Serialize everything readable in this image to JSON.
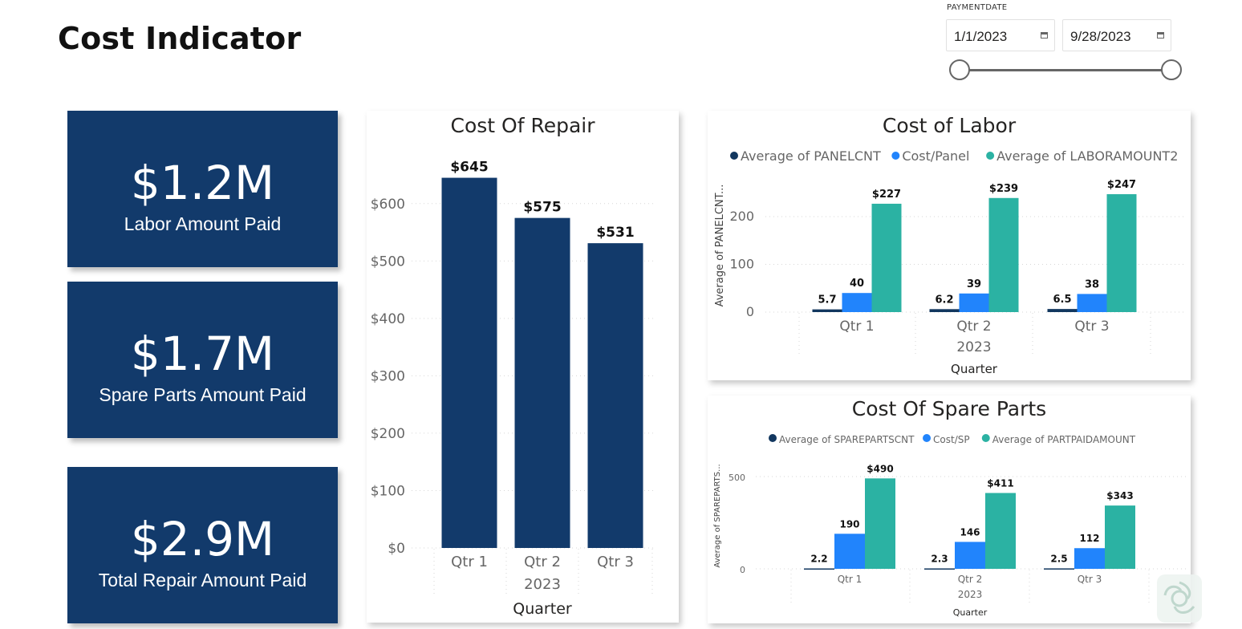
{
  "header": {
    "title": "Cost Indicator"
  },
  "slicer": {
    "label": "PAYMENTDATE",
    "start_date": "1/1/2023",
    "end_date": "9/28/2023",
    "range_start": 0.0,
    "range_end": 1.0
  },
  "kpis": [
    {
      "value": "$1.2M",
      "label": "Labor Amount Paid"
    },
    {
      "value": "$1.7M",
      "label": "Spare Parts Amount Paid"
    },
    {
      "value": "$2.9M",
      "label": "Total Repair Amount Paid"
    }
  ],
  "colors": {
    "navy": "#123a6b",
    "blue": "#2184fc",
    "teal": "#2bb2a3",
    "dark_navy": "#12375f"
  },
  "chart_data": [
    {
      "type": "bar",
      "title": "Cost Of Repair",
      "categories": [
        "Qtr 1",
        "Qtr 2",
        "Qtr 3"
      ],
      "category_group": "2023",
      "values": [
        645,
        575,
        531
      ],
      "data_labels": [
        "$645",
        "$575",
        "$531"
      ],
      "xlabel": "Quarter",
      "ylabel": "",
      "ylim": [
        0,
        650
      ],
      "yticks": [
        0,
        100,
        200,
        300,
        400,
        500,
        600
      ],
      "ytick_labels": [
        "$0",
        "$100",
        "$200",
        "$300",
        "$400",
        "$500",
        "$600"
      ],
      "grid": true
    },
    {
      "type": "bar",
      "title": "Cost of Labor",
      "categories": [
        "Qtr 1",
        "Qtr 2",
        "Qtr 3"
      ],
      "category_group": "2023",
      "series": [
        {
          "name": "Average of PANELCNT",
          "values": [
            5.7,
            6.2,
            6.5
          ],
          "labels": [
            "5.7",
            "6.2",
            "6.5"
          ],
          "color": "#12375f"
        },
        {
          "name": "Cost/Panel",
          "values": [
            40,
            39,
            38
          ],
          "labels": [
            "40",
            "39",
            "38"
          ],
          "color": "#2184fc"
        },
        {
          "name": "Average of LABORAMOUNT2",
          "values": [
            227,
            239,
            247
          ],
          "labels": [
            "$227",
            "$239",
            "$247"
          ],
          "color": "#2bb2a3"
        }
      ],
      "xlabel": "Quarter",
      "ylabel": "Average of PANELCNT...",
      "ylim": [
        0,
        250
      ],
      "yticks": [
        0,
        100,
        200
      ],
      "ytick_labels": [
        "0",
        "100",
        "200"
      ],
      "legend": "top",
      "grid": true
    },
    {
      "type": "bar",
      "title": "Cost Of Spare Parts",
      "categories": [
        "Qtr 1",
        "Qtr 2",
        "Qtr 3"
      ],
      "category_group": "2023",
      "series": [
        {
          "name": "Average of SPAREPARTSCNT",
          "values": [
            2.2,
            2.3,
            2.5
          ],
          "labels": [
            "2.2",
            "2.3",
            "2.5"
          ],
          "color": "#12375f"
        },
        {
          "name": "Cost/SP",
          "values": [
            190,
            146,
            112
          ],
          "labels": [
            "190",
            "146",
            "112"
          ],
          "color": "#2184fc"
        },
        {
          "name": "Average of PARTPAIDAMOUNT",
          "values": [
            490,
            411,
            343
          ],
          "labels": [
            "$490",
            "$411",
            "$343"
          ],
          "color": "#2bb2a3"
        }
      ],
      "xlabel": "Quarter",
      "ylabel": "Average of SPAREPARTS...",
      "ylim": [
        0,
        500
      ],
      "yticks": [
        0,
        500
      ],
      "ytick_labels": [
        "0",
        "500"
      ],
      "legend": "top",
      "grid": true
    }
  ]
}
